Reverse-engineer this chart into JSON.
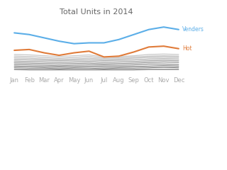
{
  "title": "Total Units in 2014",
  "months": [
    "Jan",
    "Feb",
    "Mar",
    "Apr",
    "May",
    "Jun",
    "Jul",
    "Aug",
    "Sep",
    "Oct",
    "Nov",
    "Dec"
  ],
  "series": {
    "Venders": {
      "color": "#5BAEE8",
      "linewidth": 1.5,
      "values": [
        100,
        96,
        88,
        80,
        74,
        76,
        76,
        84,
        96,
        108,
        114,
        108
      ],
      "label": "Venders"
    },
    "Hot": {
      "color": "#E07B39",
      "linewidth": 1.5,
      "values": [
        58,
        60,
        52,
        46,
        52,
        56,
        42,
        44,
        54,
        66,
        68,
        62
      ],
      "label": "Hot"
    },
    "gray1": {
      "color": "#C8C8C8",
      "linewidth": 0.9,
      "values": [
        48,
        47,
        45,
        43,
        45,
        47,
        42,
        43,
        45,
        48,
        49,
        48
      ]
    },
    "gray2": {
      "color": "#C0C0C0",
      "linewidth": 0.9,
      "values": [
        44,
        43,
        41,
        39,
        41,
        43,
        39,
        40,
        42,
        44,
        45,
        44
      ]
    },
    "gray3": {
      "color": "#B8B8B8",
      "linewidth": 0.9,
      "values": [
        40,
        39,
        37,
        36,
        37,
        39,
        36,
        37,
        39,
        41,
        42,
        41
      ]
    },
    "gray4": {
      "color": "#ABABAB",
      "linewidth": 0.9,
      "values": [
        36,
        35,
        34,
        33,
        34,
        35,
        33,
        34,
        35,
        37,
        38,
        37
      ]
    },
    "gray5": {
      "color": "#9E9E9E",
      "linewidth": 0.9,
      "values": [
        32,
        31,
        30,
        29,
        30,
        31,
        29,
        30,
        31,
        33,
        34,
        33
      ]
    },
    "gray6": {
      "color": "#909090",
      "linewidth": 0.9,
      "values": [
        28,
        27,
        26,
        25,
        26,
        27,
        25,
        26,
        27,
        29,
        30,
        29
      ]
    },
    "gray7": {
      "color": "#808080",
      "linewidth": 0.8,
      "values": [
        24,
        23,
        22,
        21,
        22,
        23,
        22,
        22,
        23,
        25,
        25,
        24
      ]
    },
    "gray8": {
      "color": "#686868",
      "linewidth": 0.8,
      "values": [
        20,
        19,
        18,
        18,
        18,
        19,
        18,
        18,
        19,
        20,
        21,
        20
      ]
    },
    "gray9": {
      "color": "#585858",
      "linewidth": 0.7,
      "values": [
        16,
        15,
        15,
        14,
        15,
        15,
        14,
        15,
        15,
        16,
        17,
        16
      ]
    },
    "gray10": {
      "color": "#484848",
      "linewidth": 0.7,
      "values": [
        12,
        11,
        11,
        11,
        11,
        11,
        11,
        11,
        11,
        12,
        12,
        12
      ]
    }
  },
  "background_color": "#FFFFFF",
  "title_color": "#666666",
  "title_fontsize": 8,
  "label_fontsize": 6,
  "label_color": "#AAAAAA",
  "ylim": [
    -5,
    130
  ],
  "figsize": [
    3.2,
    2.4
  ],
  "dpi": 100
}
